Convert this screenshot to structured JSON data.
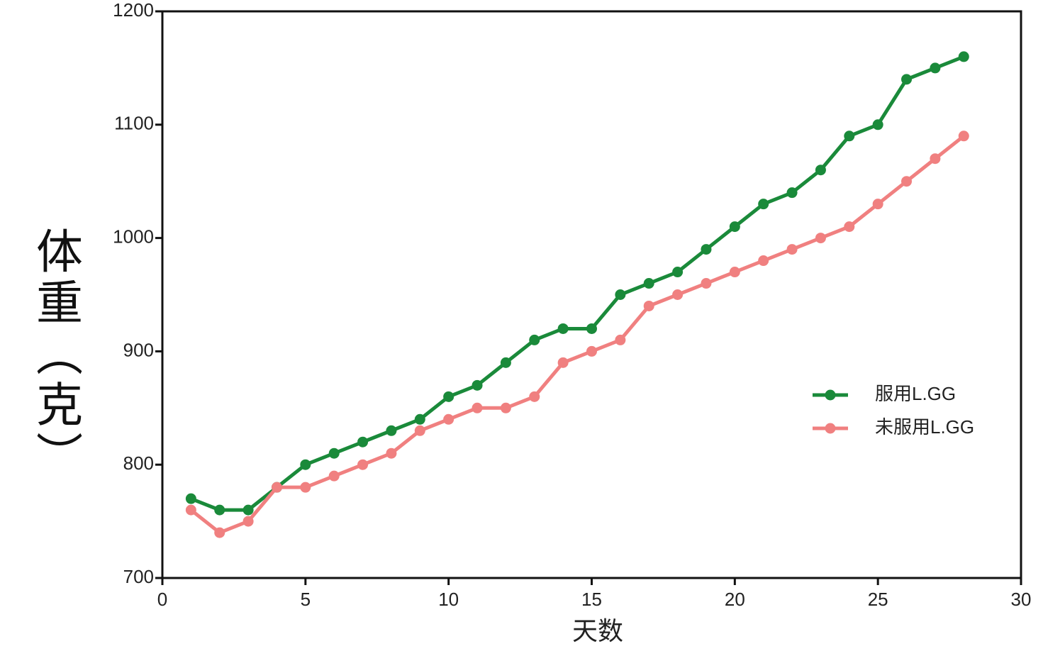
{
  "chart_data": {
    "type": "line",
    "x_label": "天数",
    "y_label": "体重（克）",
    "x": [
      1,
      2,
      3,
      4,
      5,
      6,
      7,
      8,
      9,
      10,
      11,
      12,
      13,
      14,
      15,
      16,
      17,
      18,
      19,
      20,
      21,
      22,
      23,
      24,
      25,
      26,
      27,
      28
    ],
    "series": [
      {
        "name": "服用L.GG",
        "color": "#1a8a3a",
        "values": [
          770,
          760,
          760,
          780,
          800,
          810,
          820,
          830,
          840,
          860,
          870,
          890,
          910,
          920,
          920,
          950,
          960,
          970,
          990,
          1010,
          1030,
          1040,
          1060,
          1090,
          1100,
          1140,
          1150,
          1160
        ]
      },
      {
        "name": "未服用L.GG",
        "color": "#f08080",
        "values": [
          760,
          740,
          750,
          780,
          780,
          790,
          800,
          810,
          830,
          840,
          850,
          850,
          860,
          890,
          900,
          910,
          940,
          950,
          960,
          970,
          980,
          990,
          1000,
          1010,
          1030,
          1050,
          1070,
          1090
        ]
      }
    ],
    "xlim": [
      0,
      30
    ],
    "xticks": [
      0,
      5,
      10,
      15,
      20,
      25,
      30
    ],
    "ylim": [
      700,
      1200
    ],
    "yticks": [
      700,
      800,
      900,
      1000,
      1100,
      1200
    ],
    "grid": false,
    "legend": "right"
  }
}
